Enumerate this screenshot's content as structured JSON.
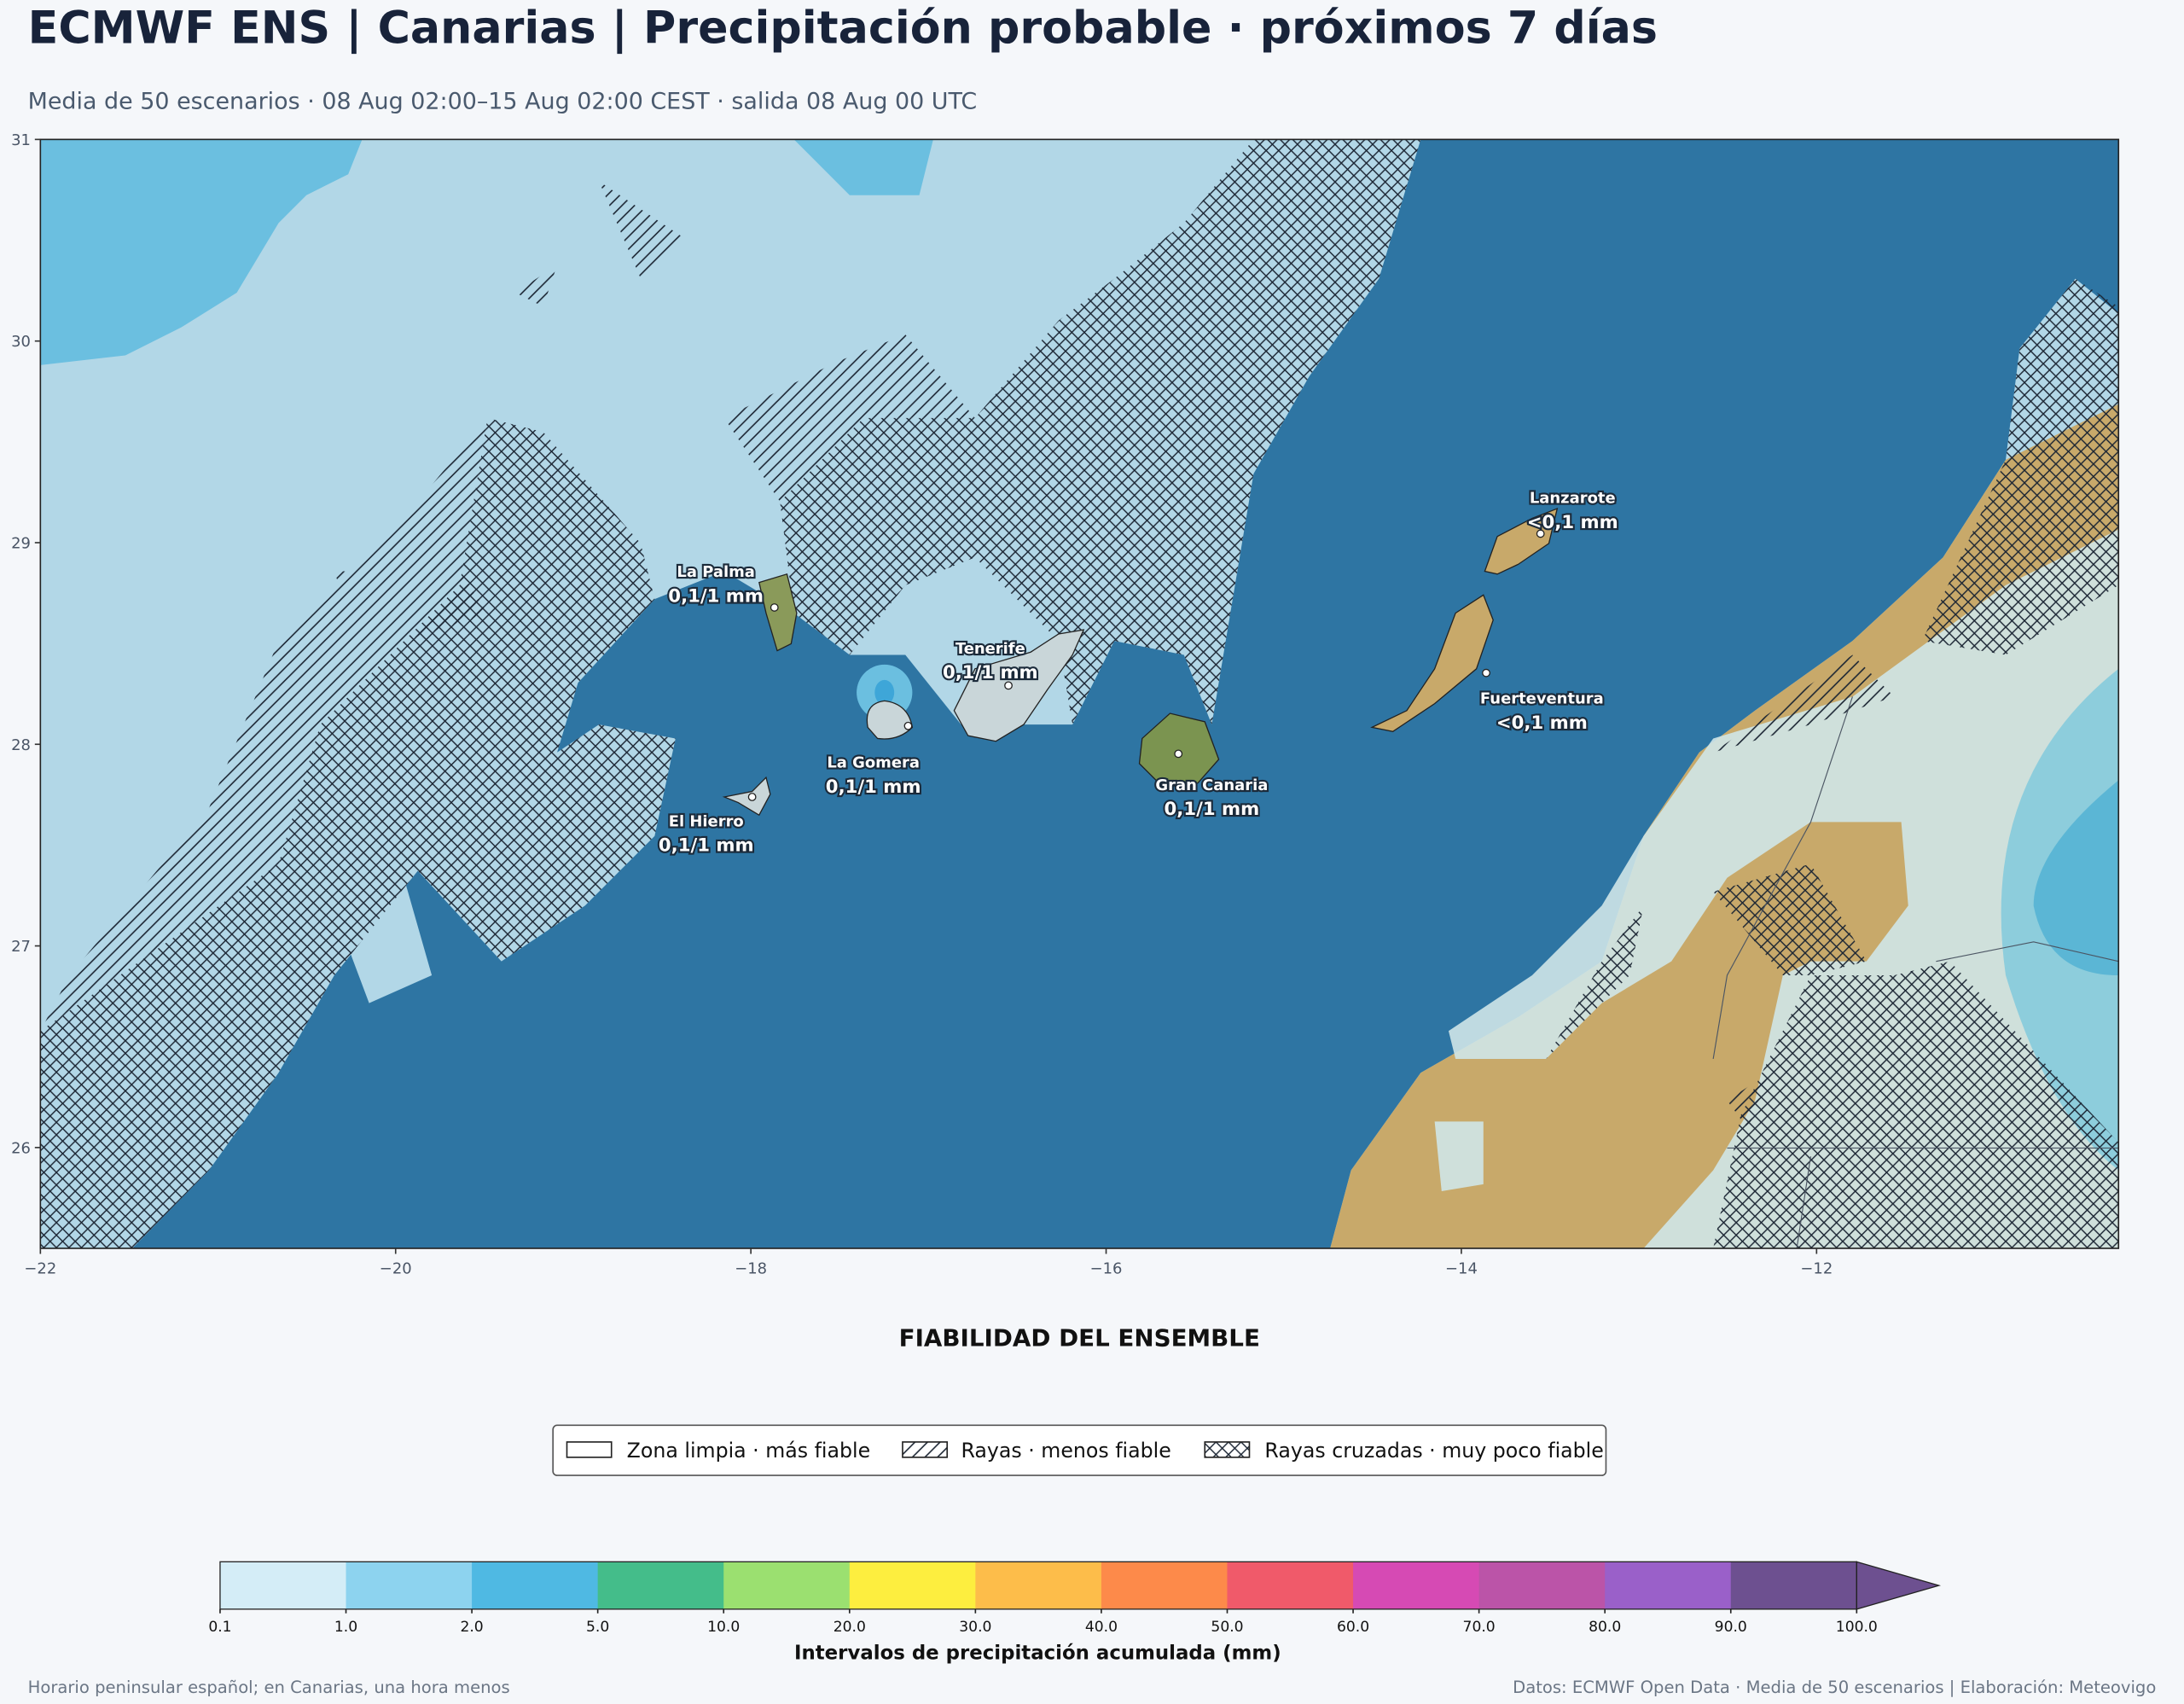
{
  "header": {
    "title": "ECMWF ENS | Canarias | Precipitación probable · próximos 7 días",
    "subtitle": "Media de 50 escenarios · 08 Aug 02:00–15 Aug 02:00 CEST · salida 08 Aug 00 UTC"
  },
  "map": {
    "xlim": [
      -22,
      -10.3
    ],
    "ylim": [
      25.5,
      31
    ],
    "xticks": [
      {
        "value": -22,
        "label": "−22"
      },
      {
        "value": -20,
        "label": "−20"
      },
      {
        "value": -18,
        "label": "−18"
      },
      {
        "value": -16,
        "label": "−16"
      },
      {
        "value": -14,
        "label": "−14"
      },
      {
        "value": -12,
        "label": "−12"
      }
    ],
    "yticks": [
      26,
      27,
      28,
      29,
      30,
      31
    ],
    "places": [
      {
        "name": "La Palma",
        "label": "0,1/1 mm"
      },
      {
        "name": "Tenerife",
        "label": "0,1/1 mm"
      },
      {
        "name": "La Gomera",
        "label": "0,1/1 mm"
      },
      {
        "name": "El Hierro",
        "label": "0,1/1 mm"
      },
      {
        "name": "Gran Canaria",
        "label": "0,1/1 mm"
      },
      {
        "name": "Fuerteventura",
        "label": "<0,1 mm"
      },
      {
        "name": "Lanzarote",
        "label": "<0,1 mm"
      }
    ]
  },
  "legend": {
    "title": "FIABILIDAD DEL ENSEMBLE",
    "items": [
      "Zona limpia · más fiable",
      "Rayas · menos fiable",
      "Rayas cruzadas · muy poco fiable"
    ]
  },
  "colorbar": {
    "label": "Intervalos de precipitación acumulada (mm)",
    "ticks": [
      0.1,
      {
        "value": 1,
        "label": "1.0"
      },
      {
        "value": 2,
        "label": "2.0"
      },
      {
        "value": 5,
        "label": "5.0"
      },
      {
        "value": 10,
        "label": "10.0"
      },
      {
        "value": 20,
        "label": "20.0"
      },
      {
        "value": 30,
        "label": "30.0"
      },
      {
        "value": 40,
        "label": "40.0"
      },
      {
        "value": 50,
        "label": "50.0"
      },
      {
        "value": 60,
        "label": "60.0"
      },
      {
        "value": 70,
        "label": "70.0"
      },
      {
        "value": 80,
        "label": "80.0"
      },
      {
        "value": 90,
        "label": "90.0"
      },
      {
        "value": 100,
        "label": "100.0"
      }
    ],
    "colors": [
      "#d4edf7",
      "#8dd3ef",
      "#4fb9e3",
      "#44bd8a",
      "#9be070",
      "#fdee3f",
      "#fdbd4a",
      "#fd8a4a",
      "#f05a6a",
      "#d64ab4",
      "#bb54a8",
      "#9a60c9",
      "#6d5090"
    ]
  },
  "footer": {
    "left": "Horario peninsular español; en Canarias, una hora menos",
    "right": "Datos: ECMWF Open Data · Media de 50 escenarios | Elaboración: Meteovigo"
  }
}
